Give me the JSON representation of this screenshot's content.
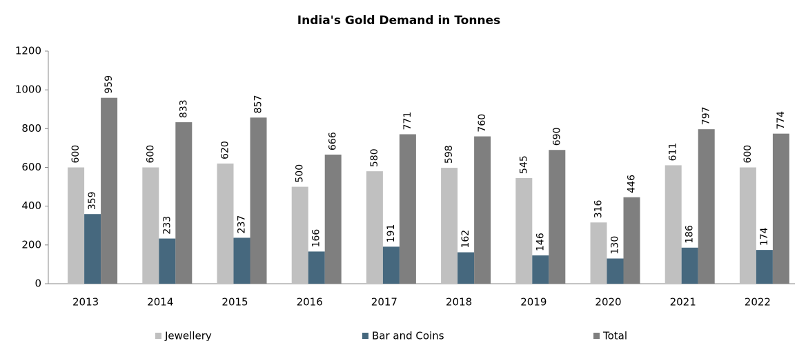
{
  "chart_data": {
    "type": "bar",
    "title": "India's Gold Demand in Tonnes",
    "categories": [
      "2013",
      "2014",
      "2015",
      "2016",
      "2017",
      "2018",
      "2019",
      "2020",
      "2021",
      "2022"
    ],
    "series": [
      {
        "name": "Jewellery",
        "color": "#c0c0c0",
        "values": [
          600,
          600,
          620,
          500,
          580,
          598,
          545,
          316,
          611,
          600
        ]
      },
      {
        "name": "Bar and Coins",
        "color": "#46687e",
        "values": [
          359,
          233,
          237,
          166,
          191,
          162,
          146,
          130,
          186,
          174
        ]
      },
      {
        "name": "Total",
        "color": "#7f7f7f",
        "values": [
          959,
          833,
          857,
          666,
          771,
          760,
          690,
          446,
          797,
          774
        ]
      }
    ],
    "ylim": [
      0,
      1200
    ],
    "yticks": [
      0,
      200,
      400,
      600,
      800,
      1000,
      1200
    ],
    "legend": "bottom"
  }
}
